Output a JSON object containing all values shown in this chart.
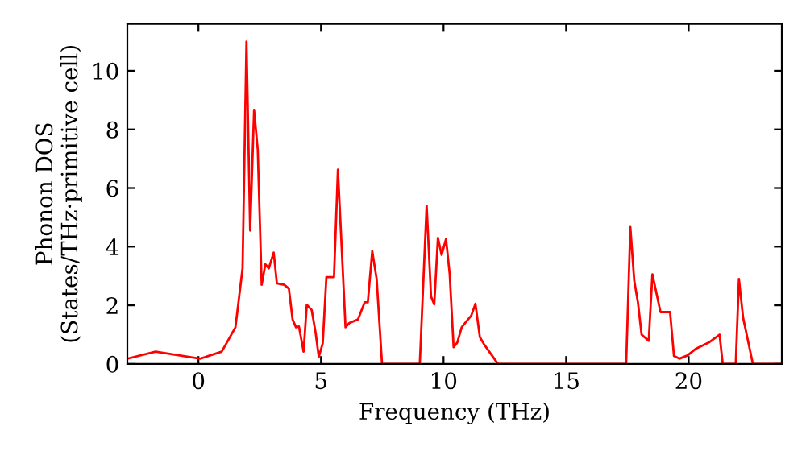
{
  "chart_data": {
    "type": "line",
    "xlabel": "Frequency (THz)",
    "ylabel": "Phonon DOS\n(States/THz·primitive cell)",
    "x": [
      -2.9,
      -1.75,
      0.07,
      0.95,
      1.51,
      1.8,
      1.96,
      2.11,
      2.27,
      2.42,
      2.58,
      2.73,
      2.87,
      3.07,
      3.2,
      3.5,
      3.69,
      3.84,
      3.98,
      4.1,
      4.29,
      4.42,
      4.62,
      4.78,
      4.91,
      5.07,
      5.22,
      5.53,
      5.69,
      6.0,
      6.16,
      6.51,
      6.78,
      6.91,
      7.09,
      7.27,
      7.49,
      9.03,
      9.31,
      9.49,
      9.62,
      9.77,
      9.92,
      10.1,
      10.25,
      10.41,
      10.56,
      10.74,
      10.95,
      11.13,
      11.3,
      11.48,
      11.66,
      12.22,
      17.45,
      17.62,
      17.78,
      17.93,
      18.08,
      18.37,
      18.52,
      18.85,
      19.24,
      19.4,
      19.62,
      19.95,
      20.28,
      20.82,
      21.26,
      21.39,
      21.92,
      22.05,
      22.22,
      22.62,
      23.78
    ],
    "series": [
      {
        "color": "#ff0000",
        "values": [
          0.18,
          0.42,
          0.18,
          0.42,
          1.25,
          3.26,
          11.0,
          4.55,
          8.67,
          7.3,
          2.7,
          3.4,
          3.26,
          3.8,
          2.75,
          2.7,
          2.57,
          1.52,
          1.25,
          1.28,
          0.42,
          2.02,
          1.84,
          1.07,
          0.24,
          0.7,
          2.96,
          2.96,
          6.63,
          1.25,
          1.4,
          1.52,
          2.1,
          2.1,
          3.85,
          2.9,
          0,
          0,
          5.4,
          2.3,
          2.03,
          4.3,
          3.72,
          4.26,
          3.07,
          0.57,
          0.73,
          1.25,
          1.47,
          1.65,
          2.05,
          0.92,
          0.66,
          0,
          0,
          4.67,
          2.84,
          2.1,
          1.0,
          0.79,
          3.06,
          1.77,
          1.77,
          0.27,
          0.18,
          0.29,
          0.51,
          0.73,
          1.0,
          0,
          0,
          2.9,
          1.58,
          0,
          0
        ]
      }
    ],
    "xlim": [
      -2.9,
      23.8
    ],
    "ylim": [
      0,
      11.6
    ],
    "xticks": [
      0,
      5,
      10,
      15,
      20
    ],
    "yticks": [
      0,
      2,
      4,
      6,
      8,
      10
    ],
    "grid": false,
    "legend": false,
    "marker": "none",
    "line_style": "solid"
  }
}
